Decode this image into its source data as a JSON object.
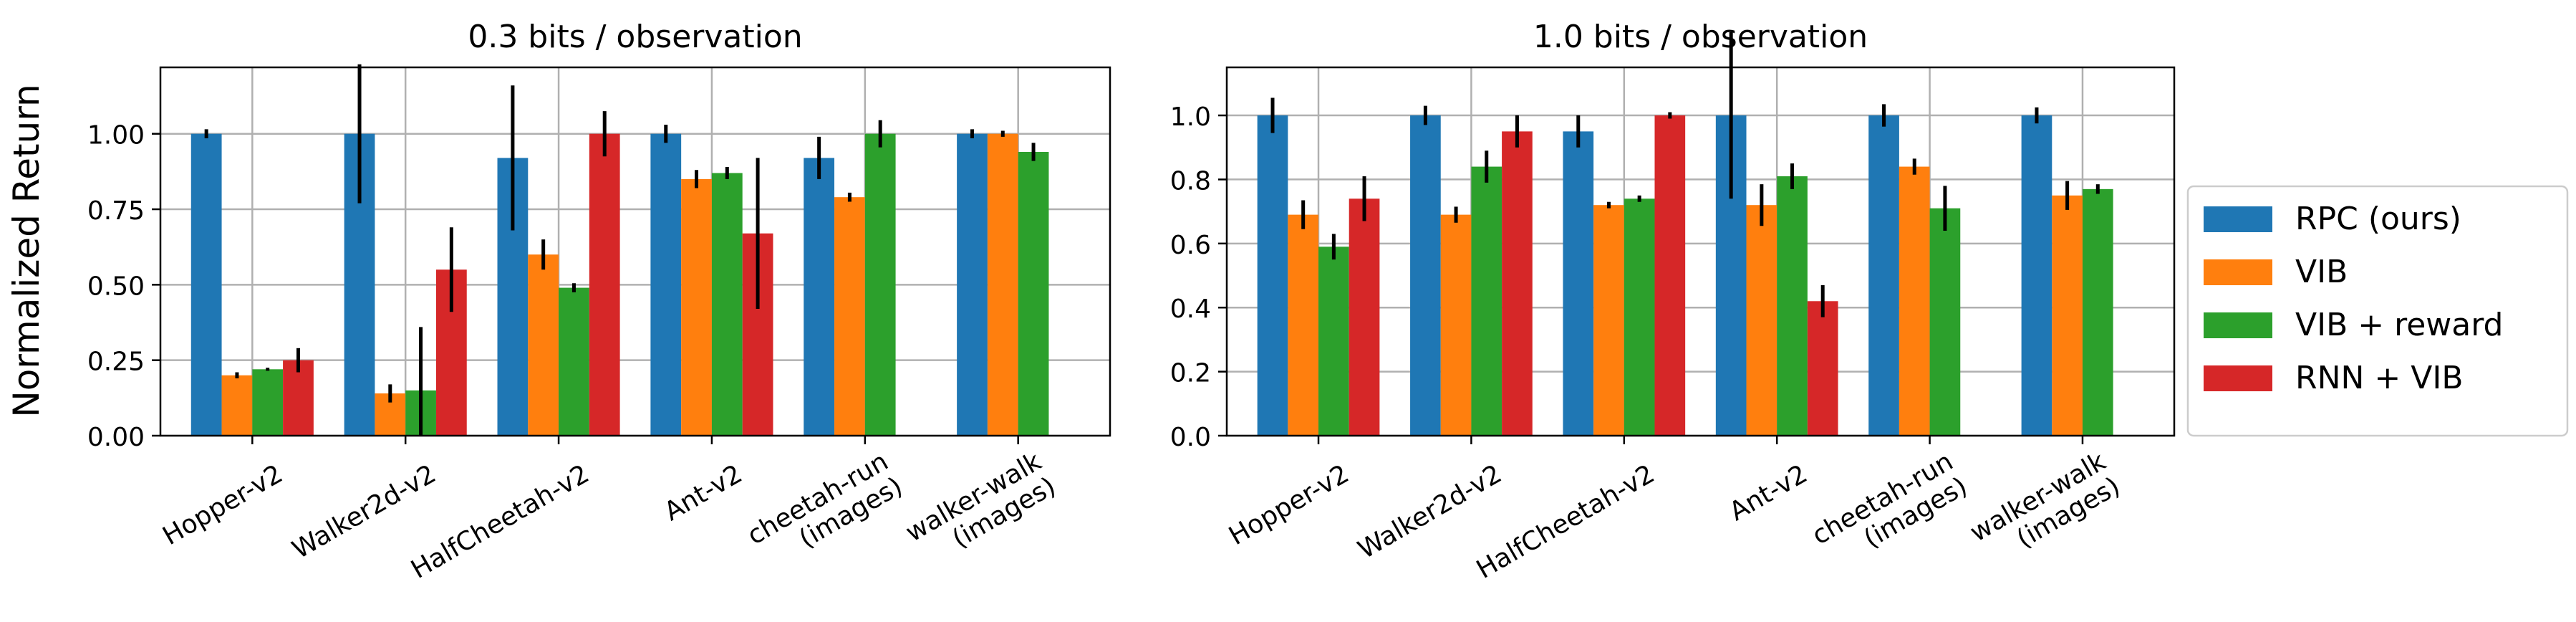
{
  "figure": {
    "ylabel": "Normalized Return"
  },
  "legend": {
    "placement": "right",
    "entries": [
      {
        "label": "RPC (ours)",
        "color": "#1f77b4"
      },
      {
        "label": "VIB",
        "color": "#ff7f0e"
      },
      {
        "label": "VIB + reward",
        "color": "#2ca02c"
      },
      {
        "label": "RNN + VIB",
        "color": "#d62728"
      }
    ]
  },
  "chart_data": [
    {
      "type": "bar",
      "title": "0.3 bits / observation",
      "ylabel": "Normalized Return",
      "ylim": [
        0,
        1.22
      ],
      "yticks": [
        0.0,
        0.25,
        0.5,
        0.75,
        1.0
      ],
      "ytick_labels": [
        "0.00",
        "0.25",
        "0.50",
        "0.75",
        "1.00"
      ],
      "grid": true,
      "categories": [
        [
          "Hopper-v2"
        ],
        [
          "Walker2d-v2"
        ],
        [
          "HalfCheetah-v2"
        ],
        [
          "Ant-v2"
        ],
        [
          "cheetah-run",
          "(images)"
        ],
        [
          "walker-walk",
          "(images)"
        ]
      ],
      "series": [
        {
          "name": "RPC (ours)",
          "color": "#1f77b4",
          "values": [
            1.0,
            1.0,
            0.92,
            1.0,
            0.92,
            1.0
          ],
          "errors": [
            0.015,
            0.23,
            0.24,
            0.03,
            0.07,
            0.015
          ]
        },
        {
          "name": "VIB",
          "color": "#ff7f0e",
          "values": [
            0.2,
            0.14,
            0.6,
            0.85,
            0.79,
            1.0
          ],
          "errors": [
            0.01,
            0.03,
            0.05,
            0.03,
            0.015,
            0.01
          ]
        },
        {
          "name": "VIB + reward",
          "color": "#2ca02c",
          "values": [
            0.22,
            0.15,
            0.49,
            0.87,
            1.0,
            0.94
          ],
          "errors": [
            0.005,
            0.21,
            0.015,
            0.02,
            0.045,
            0.03
          ]
        },
        {
          "name": "RNN + VIB",
          "color": "#d62728",
          "values": [
            0.25,
            0.55,
            1.0,
            0.67,
            null,
            null
          ],
          "errors": [
            0.04,
            0.14,
            0.075,
            0.25,
            null,
            null
          ]
        }
      ]
    },
    {
      "type": "bar",
      "title": "1.0 bits / observation",
      "ylabel": "",
      "ylim": [
        0,
        1.15
      ],
      "yticks": [
        0.0,
        0.2,
        0.4,
        0.6,
        0.8,
        1.0
      ],
      "ytick_labels": [
        "0.0",
        "0.2",
        "0.4",
        "0.6",
        "0.8",
        "1.0"
      ],
      "grid": true,
      "categories": [
        [
          "Hopper-v2"
        ],
        [
          "Walker2d-v2"
        ],
        [
          "HalfCheetah-v2"
        ],
        [
          "Ant-v2"
        ],
        [
          "cheetah-run",
          "(images)"
        ],
        [
          "walker-walk",
          "(images)"
        ]
      ],
      "series": [
        {
          "name": "RPC (ours)",
          "color": "#1f77b4",
          "values": [
            1.0,
            1.0,
            0.95,
            1.0,
            1.0,
            1.0
          ],
          "errors": [
            0.055,
            0.03,
            0.05,
            0.26,
            0.035,
            0.025
          ]
        },
        {
          "name": "VIB",
          "color": "#ff7f0e",
          "values": [
            0.69,
            0.69,
            0.72,
            0.72,
            0.84,
            0.75
          ],
          "errors": [
            0.045,
            0.025,
            0.01,
            0.065,
            0.025,
            0.045
          ]
        },
        {
          "name": "VIB + reward",
          "color": "#2ca02c",
          "values": [
            0.59,
            0.84,
            0.74,
            0.81,
            0.71,
            0.77
          ],
          "errors": [
            0.04,
            0.05,
            0.01,
            0.04,
            0.07,
            0.015
          ]
        },
        {
          "name": "RNN + VIB",
          "color": "#d62728",
          "values": [
            0.74,
            0.95,
            1.0,
            0.42,
            null,
            null
          ],
          "errors": [
            0.07,
            0.05,
            0.01,
            0.05,
            null,
            null
          ]
        }
      ]
    }
  ]
}
